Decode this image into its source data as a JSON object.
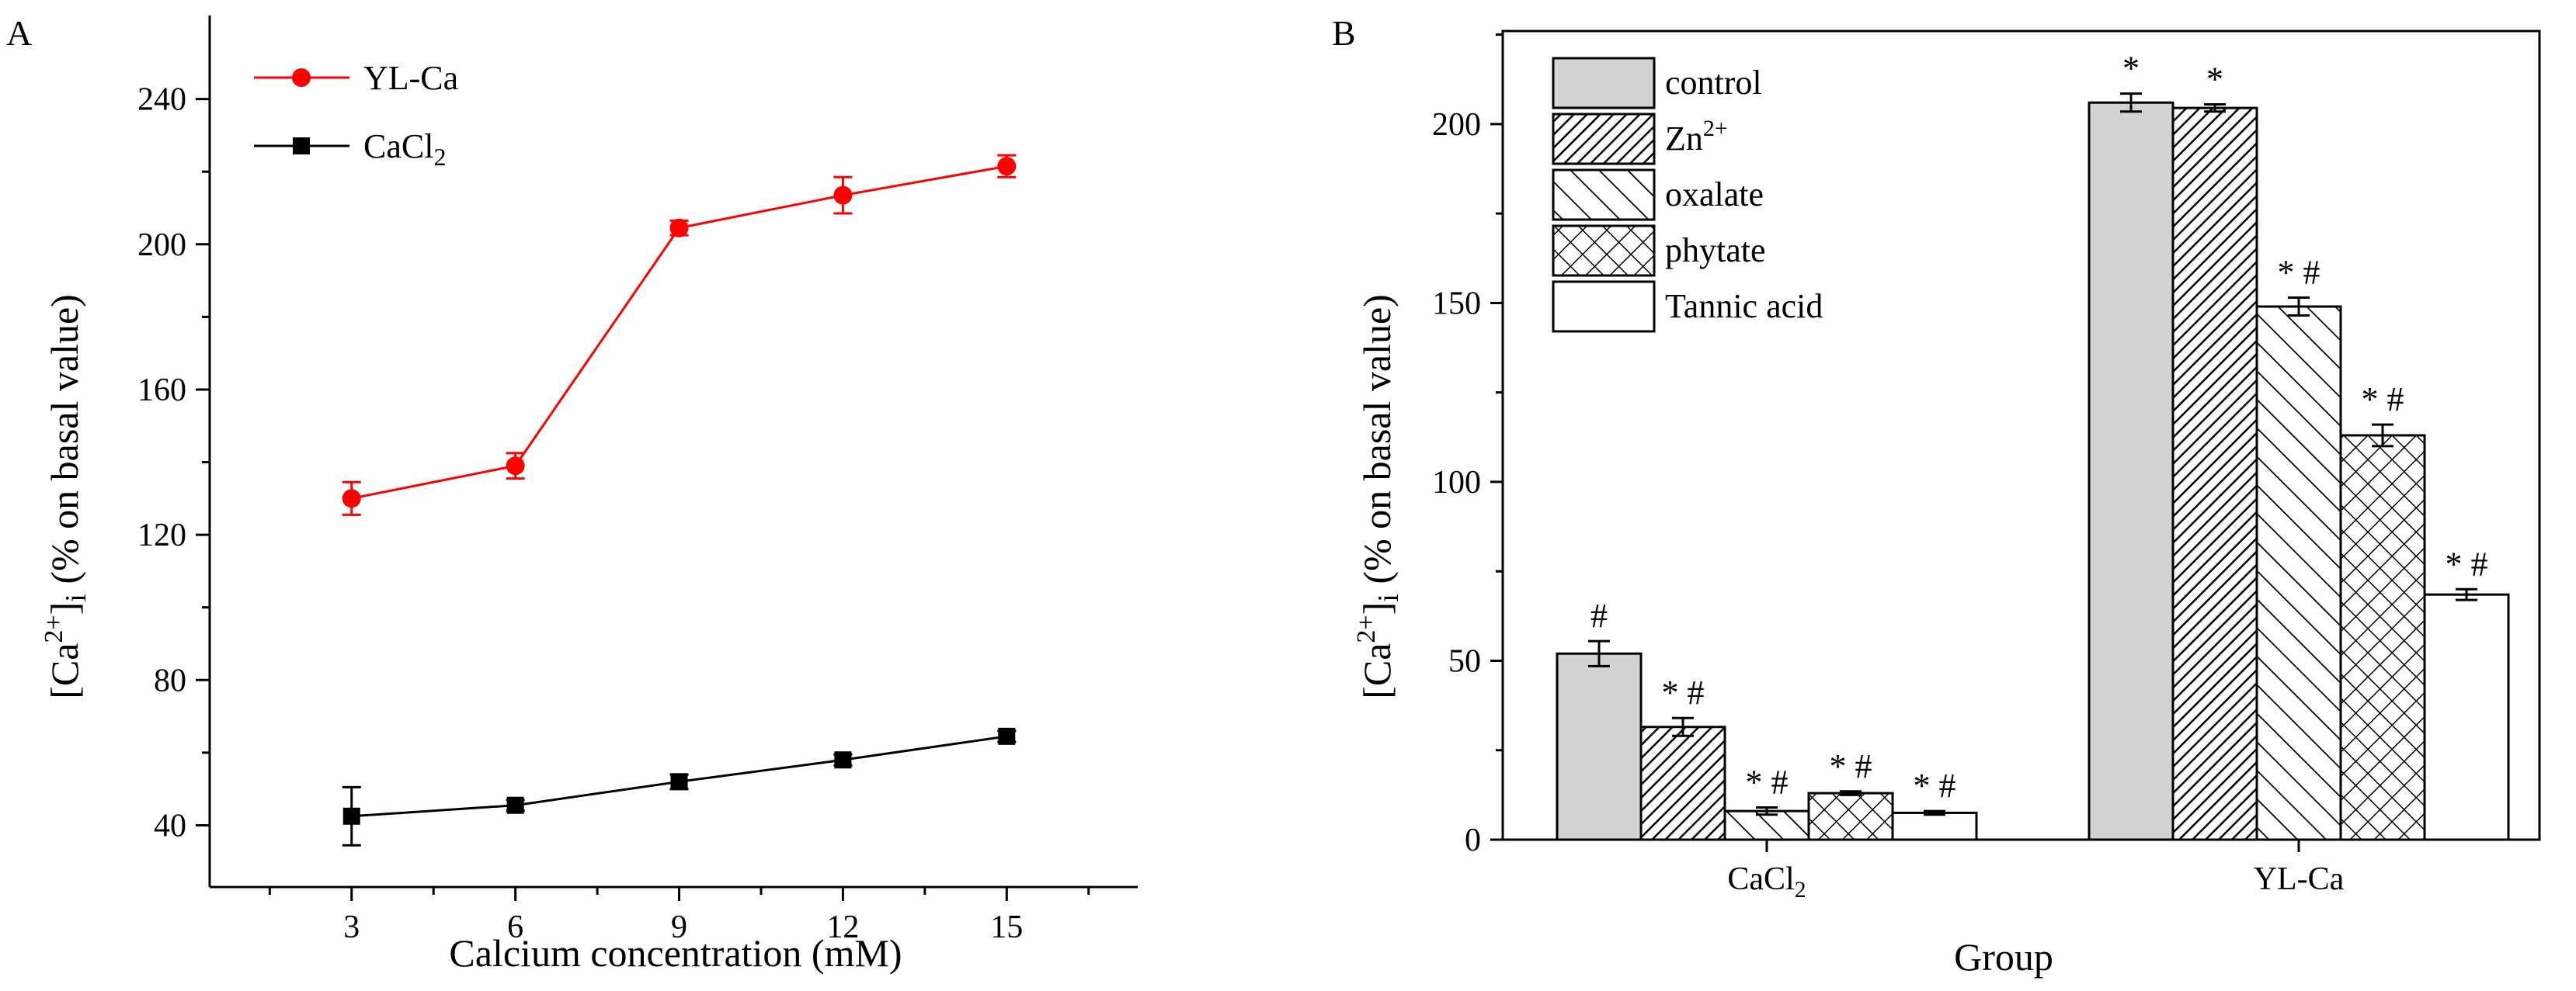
{
  "panel_labels": {
    "a": "A",
    "b": "B"
  },
  "chart_data": [
    {
      "panel": "A",
      "type": "line",
      "title": "",
      "xlabel": "Calcium concentration (mM)",
      "ylabel": {
        "pre": "[Ca",
        "sup": "2+",
        "mid": "]",
        "sub": "i",
        "post": " (% on basal value)"
      },
      "x": [
        3,
        6,
        9,
        12,
        15
      ],
      "x_ticks": [
        "3",
        "6",
        "9",
        "12",
        "15"
      ],
      "xlim": [
        0.4,
        17.4
      ],
      "y_ticks": [
        "40",
        "80",
        "120",
        "160",
        "200",
        "240"
      ],
      "ylim": [
        23,
        263
      ],
      "grid": false,
      "legend_position": "top-left",
      "series": [
        {
          "name": "YL-Ca",
          "label_main": "YL-Ca",
          "label_sub": "",
          "color": "#ff0000",
          "marker": "circle",
          "values": [
            130,
            139,
            204.5,
            213.5,
            221.5
          ],
          "errors": [
            4.5,
            3.5,
            2,
            5,
            3
          ]
        },
        {
          "name": "CaCl2",
          "label_main": "CaCl",
          "label_sub": "2",
          "color": "#000000",
          "marker": "square",
          "values": [
            42.5,
            45.5,
            52,
            58,
            64.5
          ],
          "errors": [
            8,
            1.5,
            2,
            1.5,
            1.5
          ]
        }
      ]
    },
    {
      "panel": "B",
      "type": "bar",
      "title": "",
      "xlabel": "Group",
      "ylabel": {
        "pre": "[Ca",
        "sup": "2+",
        "mid": "]",
        "sub": "i",
        "post": " (% on basal value)"
      },
      "categories": [
        "CaCl2",
        "YL-Ca"
      ],
      "category_labels": [
        {
          "main": "CaCl",
          "sub": "2"
        },
        {
          "main": "YL-Ca",
          "sub": ""
        }
      ],
      "y_ticks": [
        "0",
        "50",
        "100",
        "150",
        "200"
      ],
      "ylim": [
        0,
        226
      ],
      "grid": false,
      "legend_position": "top-left",
      "series": [
        {
          "name": "control",
          "label_main": "control",
          "label_sup": "",
          "fill": "solid-gray",
          "color": "#d3d3d3",
          "values": [
            52,
            206
          ],
          "errors": [
            3.5,
            2.5
          ],
          "annotations": [
            "#",
            "*"
          ]
        },
        {
          "name": "Zn2+",
          "label_main": "Zn",
          "label_sup": "2+",
          "fill": "diagonal-dense",
          "color": "#000000",
          "values": [
            31.5,
            204.5
          ],
          "errors": [
            2.5,
            1
          ],
          "annotations": [
            "* #",
            "*"
          ]
        },
        {
          "name": "oxalate",
          "label_main": "oxalate",
          "label_sup": "",
          "fill": "diagonal-sparse",
          "color": "#000000",
          "values": [
            8,
            149
          ],
          "errors": [
            1,
            2.5
          ],
          "annotations": [
            "* #",
            "* #"
          ]
        },
        {
          "name": "phytate",
          "label_main": "phytate",
          "label_sup": "",
          "fill": "crosshatch",
          "color": "#000000",
          "values": [
            13,
            113
          ],
          "errors": [
            0.5,
            3
          ],
          "annotations": [
            "* #",
            "* #"
          ]
        },
        {
          "name": "Tannic acid",
          "label_main": "Tannic acid",
          "label_sup": "",
          "fill": "white",
          "color": "#ffffff",
          "values": [
            7.5,
            68.5
          ],
          "errors": [
            0.5,
            1.5
          ],
          "annotations": [
            "* #",
            "* #"
          ]
        }
      ]
    }
  ]
}
